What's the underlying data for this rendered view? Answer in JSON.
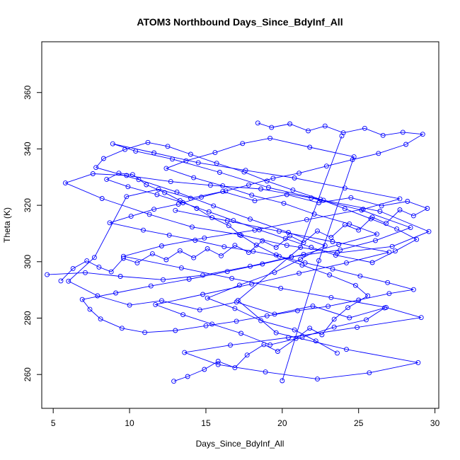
{
  "chart_data": {
    "type": "scatter",
    "title": "ATOM3 Northbound Days_Since_BdyInf_All",
    "xlabel": "Days_Since_BdyInf_All",
    "ylabel": "Theta (K)",
    "xlim": [
      4.25,
      30.25
    ],
    "ylim": [
      248,
      378
    ],
    "xticks": [
      5,
      10,
      15,
      20,
      25,
      30
    ],
    "xtick_labels": [
      "5",
      "10",
      "15",
      "20",
      "25",
      "30"
    ],
    "yticks": [
      260,
      280,
      300,
      320,
      340,
      360
    ],
    "ytick_labels": [
      "260",
      "280",
      "300",
      "320",
      "340",
      "360"
    ],
    "grid": false,
    "legend": "none",
    "series_color": "#0000ff",
    "marker": "open-circle",
    "connected_by_lines": true,
    "series": [
      {
        "x": [
          4.6,
          7.1,
          9.4,
          12.2,
          14.8,
          17.9,
          20.6,
          23.8,
          26.1,
          28.4,
          25.2,
          21.9,
          18.6,
          15.3,
          12.7,
          9.8,
          7.6,
          5.8,
          8.2,
          11.3,
          14.1,
          17.2,
          20.3,
          23.6,
          27.2,
          29.6,
          26.4,
          22.7,
          19.1,
          15.9,
          12.8,
          10.4,
          8.9,
          11.6,
          14.5,
          17.6,
          20.8,
          24.1,
          27.7,
          25.3,
          21.6,
          18.2,
          14.9,
          12.1,
          9.6,
          13.4,
          16.7,
          19.9,
          23.2,
          26.8,
          29.1,
          24.9,
          20.4,
          16.6,
          13.6,
          15.8,
          18.9,
          22.3,
          25.7,
          28.9,
          24.2,
          19.6,
          17.1,
          21.2,
          23.9
        ],
        "y": [
          295.4,
          296.1,
          294.8,
          293.6,
          295.2,
          298.4,
          301.7,
          304.2,
          307.5,
          312.1,
          318.3,
          322.6,
          325.8,
          327.1,
          328.4,
          330.6,
          331.2,
          327.9,
          322.4,
          316.8,
          312.3,
          309.6,
          305.8,
          303.1,
          305.4,
          310.7,
          317.9,
          321.8,
          326.3,
          331.7,
          336.4,
          339.2,
          341.8,
          338.6,
          335.1,
          332.4,
          329.7,
          326.1,
          322.3,
          318.6,
          314.9,
          311.2,
          308.4,
          305.6,
          301.9,
          297.8,
          294.1,
          290.6,
          287.3,
          283.8,
          280.2,
          276.7,
          273.1,
          270.4,
          267.8,
          263.5,
          260.9,
          258.4,
          260.6,
          264.2,
          268.9,
          274.8,
          286.3,
          305.1,
          344.6
        ]
      },
      {
        "x": [
          18.4,
          19.3,
          20.5,
          21.7,
          22.8,
          24.0,
          25.4,
          26.6,
          27.9,
          29.2,
          28.1,
          26.3,
          24.6,
          22.9,
          21.1,
          19.4,
          17.8,
          16.3,
          14.7,
          13.2,
          11.6,
          10.1,
          8.7,
          10.9,
          12.6,
          14.3,
          16.2,
          18.1,
          19.8,
          21.5,
          23.3,
          25.1,
          26.9,
          28.6,
          27.0,
          25.0,
          23.0,
          21.0,
          19.0,
          17.0,
          15.0,
          13.0,
          11.0,
          9.5,
          8.1,
          7.4,
          6.9,
          9.1,
          11.4,
          13.9,
          16.4,
          18.7,
          21.4,
          23.7,
          26.2,
          24.4,
          22.1,
          20.1,
          18.0,
          16.1,
          14.2,
          12.4,
          13.7,
          15.6,
          17.4,
          19.2,
          21.8,
          24.7,
          22.4,
          20.0
        ],
        "y": [
          349.2,
          347.6,
          348.9,
          346.4,
          348.1,
          345.7,
          347.3,
          344.8,
          345.9,
          345.2,
          341.6,
          338.4,
          336.2,
          333.9,
          331.4,
          329.6,
          327.2,
          325.1,
          322.9,
          320.4,
          318.6,
          316.1,
          313.8,
          311.2,
          309.4,
          307.6,
          305.3,
          303.7,
          301.9,
          299.6,
          297.4,
          294.9,
          292.6,
          290.1,
          288.7,
          286.4,
          284.2,
          282.6,
          280.8,
          278.9,
          277.3,
          275.6,
          274.9,
          276.4,
          279.7,
          283.1,
          286.6,
          288.9,
          291.4,
          293.8,
          296.5,
          299.2,
          302.6,
          306.1,
          309.8,
          313.4,
          316.9,
          320.7,
          323.6,
          326.9,
          329.8,
          333.1,
          335.8,
          338.7,
          341.9,
          343.8,
          340.6,
          337.2,
          300.4,
          257.8
        ]
      },
      {
        "x": [
          12.9,
          13.8,
          14.9,
          15.8,
          16.9,
          17.7,
          18.8,
          19.7,
          20.9,
          21.8,
          22.6,
          23.4,
          24.3,
          25.6,
          24.8,
          23.1,
          21.3,
          19.6,
          18.3,
          17.3,
          16.5,
          15.4,
          14.4,
          13.3,
          12.3,
          11.1,
          10.2,
          9.3,
          8.5,
          9.9,
          11.8,
          13.5,
          15.2,
          16.8,
          18.5,
          20.2,
          21.9,
          23.5,
          25.9,
          27.4,
          28.8,
          27.5,
          25.8,
          24.1,
          22.5,
          20.7,
          19.0,
          17.5,
          15.7,
          14.0,
          12.5,
          11.2,
          9.7,
          8.3,
          7.8,
          10.6,
          13.1,
          15.5,
          17.9,
          20.4,
          22.8,
          21.2,
          19.5,
          17.2,
          15.1,
          16.9,
          18.6,
          20.8,
          22.2,
          23.6
        ],
        "y": [
          257.6,
          259.3,
          261.8,
          264.7,
          262.4,
          266.9,
          270.6,
          268.2,
          272.8,
          276.4,
          274.1,
          279.6,
          283.7,
          287.9,
          291.6,
          295.3,
          298.8,
          302.4,
          305.9,
          309.3,
          312.8,
          315.6,
          318.9,
          321.7,
          324.5,
          327.3,
          330.9,
          331.4,
          329.2,
          326.6,
          323.8,
          320.9,
          317.7,
          314.6,
          311.3,
          308.2,
          305.1,
          302.3,
          299.7,
          303.8,
          307.9,
          311.6,
          315.2,
          318.8,
          322.1,
          325.4,
          328.6,
          331.8,
          334.9,
          338.1,
          340.9,
          342.3,
          339.8,
          336.6,
          333.4,
          329.1,
          324.7,
          319.8,
          315.1,
          310.4,
          305.7,
          300.9,
          296.2,
          291.7,
          287.1,
          283.4,
          279.1,
          275.8,
          271.9,
          267.6
        ]
      },
      {
        "x": [
          5.5,
          6.3,
          7.2,
          8.0,
          8.8,
          9.6,
          10.5,
          11.5,
          12.4,
          13.3,
          14.2,
          15.1,
          16.0,
          16.9,
          17.8,
          18.7,
          19.6,
          20.5,
          21.4,
          22.3,
          23.2,
          24.1,
          25.0,
          25.9,
          26.8,
          27.7,
          28.6,
          29.5,
          28.2,
          26.5,
          24.5,
          22.4,
          20.3,
          18.2,
          16.1,
          14.0,
          11.9,
          9.8,
          7.7,
          6.0,
          7.9,
          10.0,
          12.1,
          14.6,
          17.0,
          19.5,
          22.0,
          24.4,
          26.7,
          25.5,
          23.4,
          21.3,
          19.2,
          17.3,
          15.4,
          13.5,
          11.7,
          14.8,
          18.0,
          21.1,
          24.2,
          27.0,
          23.3,
          19.8,
          16.4,
          13.0
        ],
        "y": [
          293.2,
          297.6,
          300.3,
          298.1,
          296.4,
          301.2,
          299.6,
          302.8,
          300.7,
          303.9,
          301.4,
          304.6,
          302.1,
          305.8,
          303.3,
          307.4,
          305.1,
          309.2,
          306.8,
          310.9,
          308.6,
          313.1,
          311.2,
          315.8,
          313.6,
          318.4,
          316.3,
          318.9,
          321.4,
          319.8,
          322.7,
          320.9,
          323.8,
          321.6,
          324.9,
          322.5,
          325.7,
          323.1,
          301.5,
          293.1,
          287.9,
          284.6,
          286.2,
          282.9,
          285.7,
          281.4,
          284.3,
          280.1,
          283.6,
          279.4,
          276.8,
          273.2,
          270.5,
          274.6,
          277.9,
          281.2,
          284.8,
          288.4,
          292.1,
          295.9,
          299.6,
          303.4,
          307.1,
          310.8,
          314.5,
          318.2
        ]
      }
    ]
  }
}
